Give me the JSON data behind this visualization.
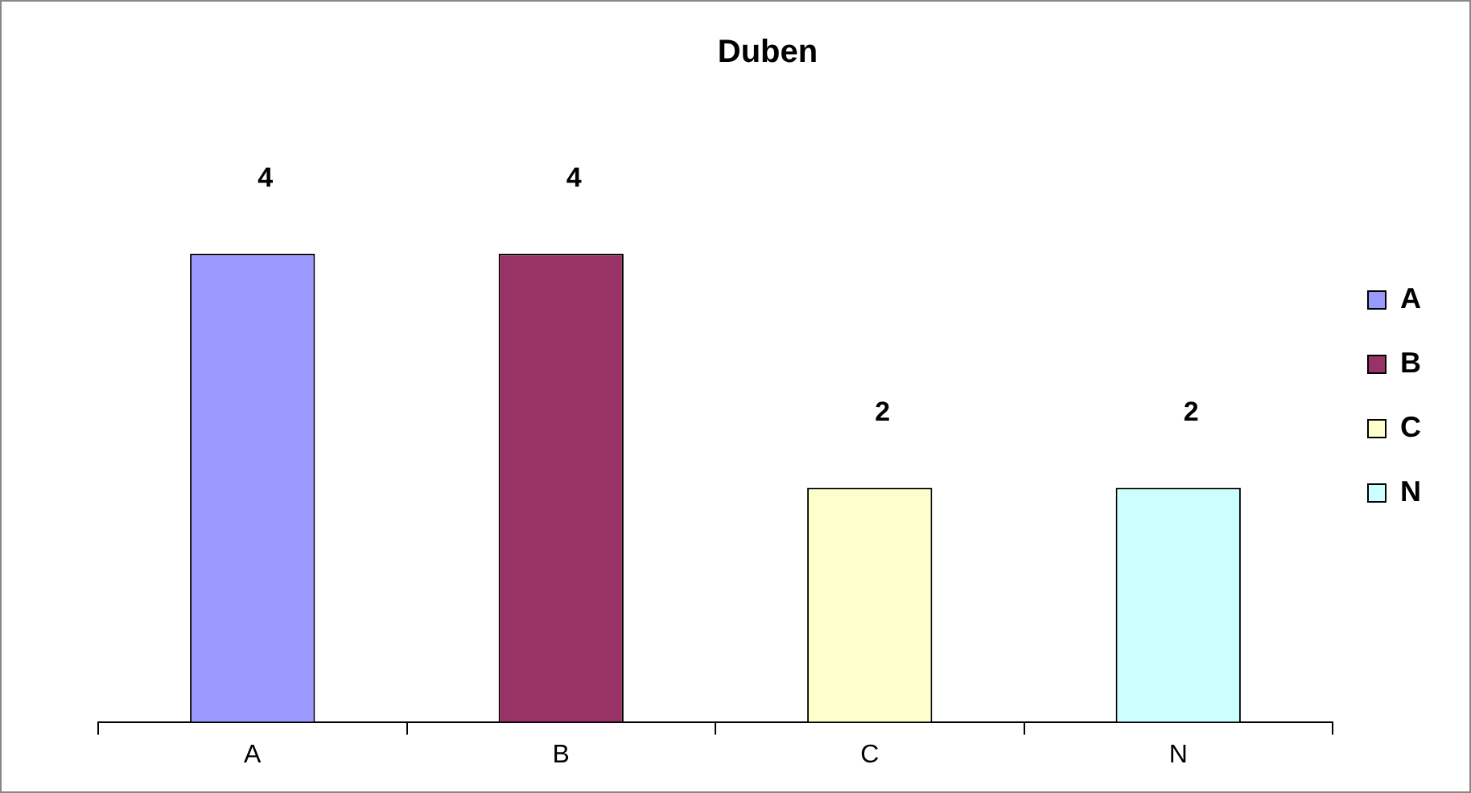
{
  "chart_data": {
    "type": "bar",
    "title": "Duben",
    "categories": [
      "A",
      "B",
      "C",
      "N"
    ],
    "stacked": true,
    "series": [
      {
        "name": "A",
        "color": "#9999ff",
        "values": [
          4,
          null,
          null,
          null
        ]
      },
      {
        "name": "B",
        "color": "#993366",
        "values": [
          null,
          4,
          null,
          null
        ]
      },
      {
        "name": "C",
        "color": "#ffffcc",
        "values": [
          null,
          null,
          2,
          null
        ]
      },
      {
        "name": "N",
        "color": "#ccffff",
        "values": [
          null,
          null,
          null,
          2
        ]
      }
    ],
    "data_labels": true,
    "legend": "right"
  }
}
